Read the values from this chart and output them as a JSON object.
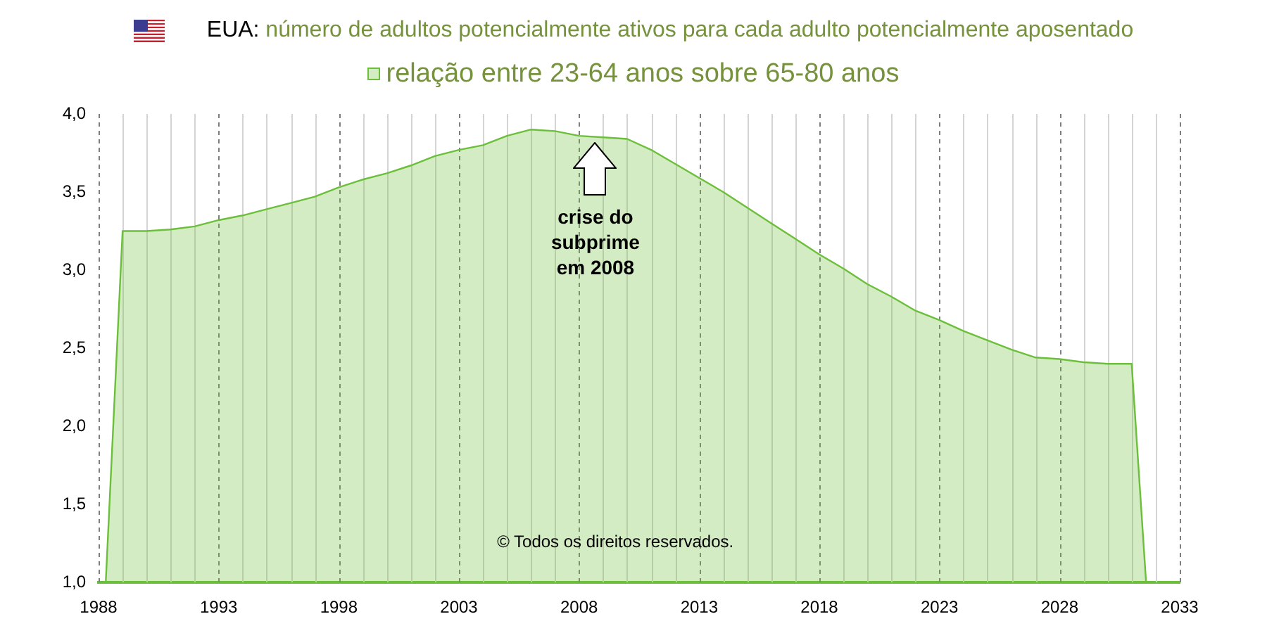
{
  "chart_data": {
    "type": "area",
    "title": "EUA: número de adultos potencialmente ativos para cada adulto potencialmente aposentado",
    "x": [
      1988.3,
      1989,
      1990,
      1991,
      1992,
      1993,
      1994,
      1995,
      1996,
      1997,
      1998,
      1999,
      2000,
      2001,
      2002,
      2003,
      2004,
      2005,
      2006,
      2007,
      2008,
      2009,
      2010,
      2011,
      2012,
      2013,
      2014,
      2015,
      2016,
      2017,
      2018,
      2019,
      2020,
      2021,
      2022,
      2023,
      2024,
      2025,
      2026,
      2027,
      2028,
      2029,
      2030,
      2031,
      2031.6
    ],
    "series": [
      {
        "name": "relação entre 23-64 anos sobre 65-80 anos",
        "color": "#6cbf3a",
        "values": [
          1.0,
          3.25,
          3.25,
          3.26,
          3.28,
          3.32,
          3.35,
          3.39,
          3.43,
          3.47,
          3.53,
          3.58,
          3.62,
          3.67,
          3.73,
          3.77,
          3.8,
          3.86,
          3.9,
          3.89,
          3.86,
          3.85,
          3.84,
          3.77,
          3.68,
          3.59,
          3.5,
          3.4,
          3.3,
          3.2,
          3.1,
          3.01,
          2.91,
          2.83,
          2.74,
          2.68,
          2.61,
          2.55,
          2.49,
          2.44,
          2.43,
          2.41,
          2.4,
          2.4,
          1.0
        ]
      }
    ],
    "xlim": [
      1988,
      2033
    ],
    "xticks": [
      1988,
      {
        "value": 1989,
        "label": null
      },
      {
        "value": 1990,
        "label": null
      },
      {
        "value": 1991,
        "label": null
      },
      {
        "value": 1992,
        "label": null
      },
      1993,
      {
        "value": 1994,
        "label": null
      },
      {
        "value": 1995,
        "label": null
      },
      {
        "value": 1996,
        "label": null
      },
      {
        "value": 1997,
        "label": null
      },
      1998,
      {
        "value": 1999,
        "label": null
      },
      {
        "value": 2000,
        "label": null
      },
      {
        "value": 2001,
        "label": null
      },
      {
        "value": 2002,
        "label": null
      },
      2003,
      {
        "value": 2004,
        "label": null
      },
      {
        "value": 2005,
        "label": null
      },
      {
        "value": 2006,
        "label": null
      },
      {
        "value": 2007,
        "label": null
      },
      2008,
      {
        "value": 2009,
        "label": null
      },
      {
        "value": 2010,
        "label": null
      },
      {
        "value": 2011,
        "label": null
      },
      {
        "value": 2012,
        "label": null
      },
      2013,
      {
        "value": 2014,
        "label": null
      },
      {
        "value": 2015,
        "label": null
      },
      {
        "value": 2016,
        "label": null
      },
      {
        "value": 2017,
        "label": null
      },
      2018,
      {
        "value": 2019,
        "label": null
      },
      {
        "value": 2020,
        "label": null
      },
      {
        "value": 2021,
        "label": null
      },
      {
        "value": 2022,
        "label": null
      },
      2023,
      {
        "value": 2024,
        "label": null
      },
      {
        "value": 2025,
        "label": null
      },
      {
        "value": 2026,
        "label": null
      },
      {
        "value": 2027,
        "label": null
      },
      2028,
      {
        "value": 2029,
        "label": null
      },
      {
        "value": 2030,
        "label": null
      },
      {
        "value": 2031,
        "label": null
      },
      {
        "value": 2032,
        "label": null
      },
      2033
    ],
    "ylim": [
      1,
      4
    ],
    "yticks": [
      {
        "value": 1,
        "label": "1,0"
      },
      {
        "value": 1.5,
        "label": "1,5"
      },
      {
        "value": 2,
        "label": "2,0"
      },
      {
        "value": 2.5,
        "label": "2,5"
      },
      {
        "value": 3,
        "label": "3,0"
      },
      {
        "value": 3.5,
        "label": "3,5"
      },
      {
        "value": 4,
        "label": "4,0"
      }
    ],
    "grid": "x",
    "legend": "top",
    "annotations": [
      "crise do subprime em 2008",
      "© Todos os direitos reservados."
    ]
  }
}
